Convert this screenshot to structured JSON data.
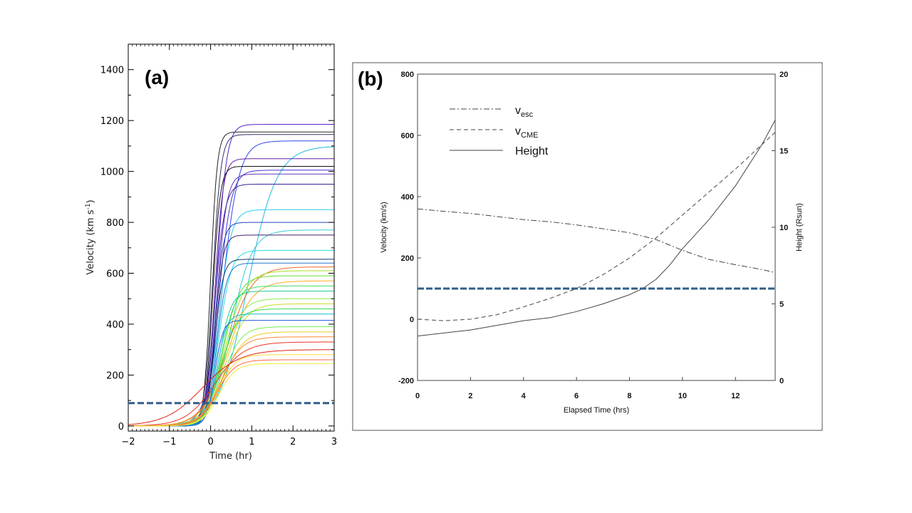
{
  "chart_data": [
    {
      "panel": "(a)",
      "type": "line",
      "xlabel": "Time (hr)",
      "ylabel": "Velocity (km s",
      "ylabel_sup": "-1",
      "ylabel_end": ")",
      "xlim": [
        -2,
        3
      ],
      "ylim": [
        -20,
        1500
      ],
      "xticks": [
        "−2",
        "−1",
        "0",
        "1",
        "2",
        "3"
      ],
      "xtick_values": [
        -2,
        -1,
        0,
        1,
        2,
        3
      ],
      "yticks": [
        "0",
        "200",
        "400",
        "600",
        "800",
        "1000",
        "1200",
        "1400"
      ],
      "ytick_values": [
        0,
        200,
        400,
        600,
        800,
        1000,
        1200,
        1400
      ],
      "threshold": 90,
      "series": [
        {
          "vf": 1155,
          "color": "#222222",
          "t0": 0.0,
          "w": 0.08
        },
        {
          "vf": 1185,
          "color": "#5522cc",
          "t0": 0.15,
          "w": 0.12
        },
        {
          "vf": 1145,
          "color": "#333366",
          "t0": 0.05,
          "w": 0.1
        },
        {
          "vf": 1120,
          "color": "#3344ee",
          "t0": 0.3,
          "w": 0.2
        },
        {
          "vf": 1100,
          "color": "#22bbdd",
          "t0": 0.9,
          "w": 0.35
        },
        {
          "vf": 1050,
          "color": "#6622aa",
          "t0": 0.1,
          "w": 0.1
        },
        {
          "vf": 1020,
          "color": "#111111",
          "t0": 0.05,
          "w": 0.09
        },
        {
          "vf": 1005,
          "color": "#4433cc",
          "t0": 0.2,
          "w": 0.15
        },
        {
          "vf": 990,
          "color": "#6633bb",
          "t0": 0.15,
          "w": 0.12
        },
        {
          "vf": 950,
          "color": "#332299",
          "t0": 0.1,
          "w": 0.12
        },
        {
          "vf": 850,
          "color": "#22ccee",
          "t0": 0.2,
          "w": 0.15
        },
        {
          "vf": 800,
          "color": "#2244bb",
          "t0": 0.1,
          "w": 0.1
        },
        {
          "vf": 770,
          "color": "#33ccdd",
          "t0": 0.5,
          "w": 0.25
        },
        {
          "vf": 750,
          "color": "#442266",
          "t0": 0.1,
          "w": 0.1
        },
        {
          "vf": 690,
          "color": "#22dddd",
          "t0": 0.2,
          "w": 0.15
        },
        {
          "vf": 655,
          "color": "#113366",
          "t0": 0.1,
          "w": 0.1
        },
        {
          "vf": 640,
          "color": "#2277cc",
          "t0": 0.15,
          "w": 0.12
        },
        {
          "vf": 625,
          "color": "#ee6622",
          "t0": 0.4,
          "w": 0.3
        },
        {
          "vf": 610,
          "color": "#aadd22",
          "t0": 0.35,
          "w": 0.25
        },
        {
          "vf": 590,
          "color": "#66dd33",
          "t0": 0.3,
          "w": 0.2
        },
        {
          "vf": 570,
          "color": "#ffaa22",
          "t0": 0.4,
          "w": 0.3
        },
        {
          "vf": 550,
          "color": "#44dd66",
          "t0": 0.25,
          "w": 0.18
        },
        {
          "vf": 530,
          "color": "#22cc99",
          "t0": 0.2,
          "w": 0.15
        },
        {
          "vf": 500,
          "color": "#88ee44",
          "t0": 0.3,
          "w": 0.22
        },
        {
          "vf": 480,
          "color": "#ccdd22",
          "t0": 0.35,
          "w": 0.25
        },
        {
          "vf": 460,
          "color": "#33dd55",
          "t0": 0.25,
          "w": 0.2
        },
        {
          "vf": 440,
          "color": "#11bbdd",
          "t0": 0.15,
          "w": 0.12
        },
        {
          "vf": 415,
          "color": "#2255dd",
          "t0": 0.1,
          "w": 0.1
        },
        {
          "vf": 390,
          "color": "#77ee55",
          "t0": 0.3,
          "w": 0.22
        },
        {
          "vf": 370,
          "color": "#eecc22",
          "t0": 0.3,
          "w": 0.25
        },
        {
          "vf": 350,
          "color": "#ff8833",
          "t0": 0.25,
          "w": 0.25
        },
        {
          "vf": 330,
          "color": "#ee3322",
          "t0": 0.1,
          "w": 0.35
        },
        {
          "vf": 300,
          "color": "#dd2211",
          "t0": -0.2,
          "w": 0.45
        },
        {
          "vf": 280,
          "color": "#ffdd33",
          "t0": 0.2,
          "w": 0.2
        },
        {
          "vf": 260,
          "color": "#ff6644",
          "t0": 0.15,
          "w": 0.22
        },
        {
          "vf": 245,
          "color": "#eeee33",
          "t0": 0.2,
          "w": 0.2
        }
      ]
    },
    {
      "panel": "(b)",
      "type": "line",
      "xlabel": "Elapsed Time (hrs)",
      "ylabel": "Velocity (km/s)",
      "y2label": "Height (Rsun)",
      "xlim": [
        0,
        13.5
      ],
      "ylim": [
        -200,
        800
      ],
      "y2lim": [
        0,
        20
      ],
      "xticks": [
        "0",
        "2",
        "4",
        "6",
        "8",
        "10",
        "12"
      ],
      "xtick_values": [
        0,
        2,
        4,
        6,
        8,
        10,
        12
      ],
      "yticks": [
        "-200",
        "0",
        "200",
        "400",
        "600",
        "800"
      ],
      "ytick_values": [
        -200,
        0,
        200,
        400,
        600,
        800
      ],
      "y2ticks": [
        "0",
        "5",
        "10",
        "15",
        "20"
      ],
      "y2tick_values": [
        0,
        5,
        10,
        15,
        20
      ],
      "threshold": 100,
      "legend": [
        {
          "name": "v",
          "sub": "esc",
          "style": "dashdot"
        },
        {
          "name": "v",
          "sub": "CME",
          "style": "dashed"
        },
        {
          "name": "Height",
          "sub": "",
          "style": "solid"
        }
      ],
      "series": [
        {
          "name": "v_esc",
          "axis": "left",
          "x": [
            0,
            1,
            2,
            3,
            4,
            5,
            6,
            7,
            8,
            9,
            10,
            11,
            12,
            13,
            13.5
          ],
          "y": [
            360,
            352,
            345,
            335,
            325,
            318,
            308,
            295,
            282,
            260,
            225,
            195,
            178,
            162,
            152
          ]
        },
        {
          "name": "v_CME",
          "axis": "left",
          "x": [
            0,
            1,
            2,
            3,
            4,
            5,
            6,
            7,
            8,
            9,
            10,
            11,
            12,
            13,
            13.5
          ],
          "y": [
            0,
            -5,
            0,
            15,
            40,
            68,
            100,
            145,
            200,
            265,
            340,
            415,
            490,
            570,
            610
          ]
        },
        {
          "name": "Height",
          "axis": "right",
          "x": [
            0,
            1,
            2,
            3,
            4,
            5,
            6,
            7,
            8,
            8.5,
            9,
            9.5,
            10,
            11,
            12,
            13,
            13.5
          ],
          "y": [
            2.9,
            3.1,
            3.3,
            3.6,
            3.9,
            4.1,
            4.5,
            5.0,
            5.6,
            6.0,
            6.6,
            7.5,
            8.6,
            10.5,
            12.7,
            15.4,
            17.0
          ]
        }
      ]
    }
  ]
}
